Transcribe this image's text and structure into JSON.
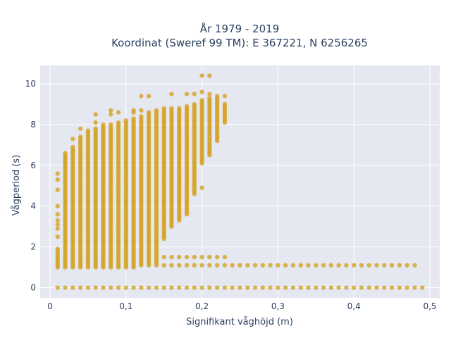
{
  "chart_data": {
    "type": "scatter",
    "title_line1": "År 1979 - 2019",
    "title_line2": "Koordinat (Sweref 99 TM): E 367221, N 6256265",
    "xlabel": "Signifikant våghöjd (m)",
    "ylabel": "Vågperiod (s)",
    "xlim": [
      -0.013,
      0.513
    ],
    "ylim": [
      -0.5,
      10.9
    ],
    "xticks": [
      0,
      0.1,
      0.2,
      0.3,
      0.4,
      0.5
    ],
    "xtick_labels": [
      "0",
      "0,1",
      "0,2",
      "0,3",
      "0,4",
      "0,5"
    ],
    "yticks": [
      0,
      2,
      4,
      6,
      8,
      10
    ],
    "ytick_labels": [
      "0",
      "2",
      "4",
      "6",
      "8",
      "10"
    ],
    "grid": true,
    "plot_background": "#e5e8f0",
    "marker_color": "#d4a326",
    "columns": [
      {
        "x": 0.01,
        "ymin": 1.0,
        "ymax": 1.9,
        "extra": [
          2.5,
          2.9,
          3.1,
          3.3,
          3.6,
          4.0,
          4.8,
          5.3,
          5.6
        ]
      },
      {
        "x": 0.02,
        "ymin": 1.0,
        "ymax": 6.6,
        "extra": []
      },
      {
        "x": 0.03,
        "ymin": 1.0,
        "ymax": 6.9,
        "extra": [
          7.3
        ]
      },
      {
        "x": 0.04,
        "ymin": 1.0,
        "ymax": 7.4,
        "extra": [
          7.8
        ]
      },
      {
        "x": 0.05,
        "ymin": 1.0,
        "ymax": 7.7,
        "extra": []
      },
      {
        "x": 0.06,
        "ymin": 1.0,
        "ymax": 7.8,
        "extra": [
          8.1,
          8.5
        ]
      },
      {
        "x": 0.07,
        "ymin": 1.0,
        "ymax": 8.0,
        "extra": []
      },
      {
        "x": 0.08,
        "ymin": 1.0,
        "ymax": 8.0,
        "extra": [
          8.5,
          8.7
        ]
      },
      {
        "x": 0.09,
        "ymin": 1.0,
        "ymax": 8.1,
        "extra": [
          8.6
        ]
      },
      {
        "x": 0.1,
        "ymin": 1.0,
        "ymax": 8.2,
        "extra": []
      },
      {
        "x": 0.11,
        "ymin": 1.0,
        "ymax": 8.3,
        "extra": [
          8.6,
          8.7
        ]
      },
      {
        "x": 0.12,
        "ymin": 1.1,
        "ymax": 8.4,
        "extra": [
          8.7,
          9.4
        ]
      },
      {
        "x": 0.13,
        "ymin": 1.1,
        "ymax": 8.6,
        "extra": [
          9.4
        ]
      },
      {
        "x": 0.14,
        "ymin": 1.1,
        "ymax": 8.7,
        "extra": []
      },
      {
        "x": 0.15,
        "ymin": 2.4,
        "ymax": 8.8,
        "extra": [
          1.1,
          1.5
        ]
      },
      {
        "x": 0.16,
        "ymin": 3.0,
        "ymax": 8.8,
        "extra": [
          1.1,
          1.5,
          9.5
        ]
      },
      {
        "x": 0.17,
        "ymin": 3.3,
        "ymax": 8.8,
        "extra": [
          1.1,
          1.5
        ]
      },
      {
        "x": 0.18,
        "ymin": 3.6,
        "ymax": 8.9,
        "extra": [
          1.1,
          1.5,
          9.5
        ]
      },
      {
        "x": 0.19,
        "ymin": 4.6,
        "ymax": 9.0,
        "extra": [
          1.1,
          1.5,
          9.5
        ]
      },
      {
        "x": 0.2,
        "ymin": 6.1,
        "ymax": 9.2,
        "extra": [
          1.1,
          1.5,
          4.9,
          9.6,
          10.4
        ]
      },
      {
        "x": 0.21,
        "ymin": 6.5,
        "ymax": 9.3,
        "extra": [
          1.1,
          1.5,
          9.5,
          10.4
        ]
      },
      {
        "x": 0.22,
        "ymin": 7.2,
        "ymax": 9.3,
        "extra": [
          1.1,
          1.5,
          9.4
        ]
      },
      {
        "x": 0.23,
        "ymin": 8.1,
        "ymax": 9.0,
        "extra": [
          1.1,
          1.5,
          9.4
        ]
      }
    ],
    "row_y_1": 1.1,
    "row_y_1_x": [
      0.24,
      0.25,
      0.26,
      0.27,
      0.28,
      0.29,
      0.3,
      0.31,
      0.32,
      0.33,
      0.34,
      0.35,
      0.36,
      0.37,
      0.38,
      0.39,
      0.4,
      0.41,
      0.42,
      0.43,
      0.44,
      0.45,
      0.46,
      0.47,
      0.48
    ],
    "row_y_0": 0,
    "row_y_0_x": [
      0.01,
      0.02,
      0.03,
      0.04,
      0.05,
      0.06,
      0.07,
      0.08,
      0.09,
      0.1,
      0.11,
      0.12,
      0.13,
      0.14,
      0.15,
      0.16,
      0.17,
      0.18,
      0.19,
      0.2,
      0.21,
      0.22,
      0.23,
      0.24,
      0.25,
      0.26,
      0.27,
      0.28,
      0.29,
      0.3,
      0.31,
      0.32,
      0.33,
      0.34,
      0.35,
      0.36,
      0.37,
      0.38,
      0.39,
      0.4,
      0.41,
      0.42,
      0.43,
      0.44,
      0.45,
      0.46,
      0.47,
      0.48,
      0.49
    ]
  }
}
